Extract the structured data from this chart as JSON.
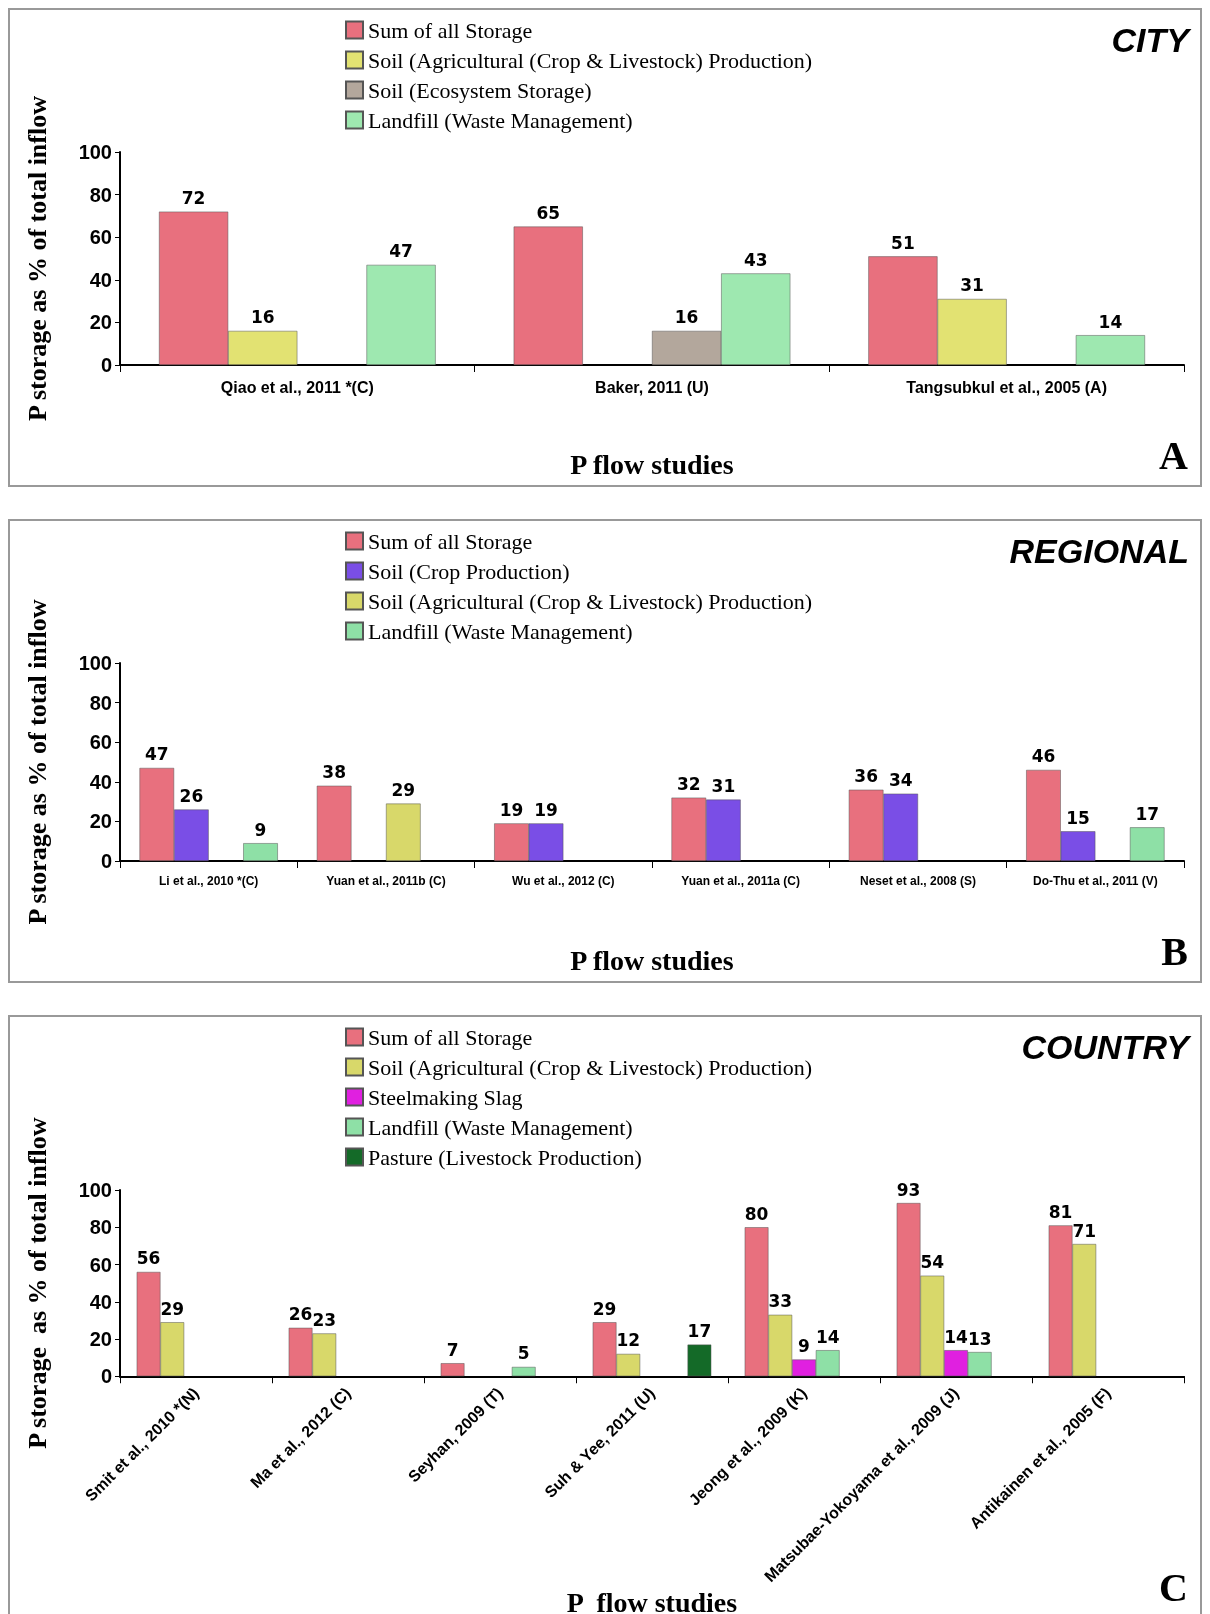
{
  "chart_data": [
    {
      "type": "bar",
      "title": "CITY",
      "xlabel": "P flow studies",
      "ylabel": "P storage as % of total inflow",
      "annotations": [
        "A"
      ],
      "categories": [
        "Qiao et al., 2011 *(C)",
        "Baker, 2011 (U)",
        "Tangsubkul et al., 2005 (A)"
      ],
      "series": [
        {
          "name": "Sum of all Storage",
          "color": "#e8707e",
          "values": [
            72,
            65,
            51
          ]
        },
        {
          "name": "Soil (Agricultural (Crop & Livestock) Production)",
          "color": "#e2e272",
          "values": [
            16,
            null,
            31
          ]
        },
        {
          "name": "Soil (Ecosystem Storage)",
          "color": "#b3a79c",
          "values": [
            null,
            16,
            null
          ]
        },
        {
          "name": "Landfill (Waste Management)",
          "color": "#9ee8b0",
          "values": [
            47,
            43,
            14
          ]
        }
      ],
      "ylim": [
        0,
        100
      ],
      "yticks": [
        0,
        20,
        40,
        60,
        80,
        100
      ],
      "data_labels": true,
      "legend": "top"
    },
    {
      "type": "bar",
      "title": "REGIONAL",
      "xlabel": "P flow studies",
      "ylabel": "P storage as % of total inflow",
      "annotations": [
        "B"
      ],
      "categories": [
        "Li et al., 2010 *(C)",
        "Yuan et al., 2011b (C)",
        "Wu et al., 2012 (C)",
        "Yuan et al., 2011a (C)",
        "Neset et al., 2008 (S)",
        "Do-Thu et al., 2011 (V)"
      ],
      "series": [
        {
          "name": "Sum of all Storage",
          "color": "#e8707e",
          "values": [
            47,
            38,
            19,
            32,
            36,
            46
          ]
        },
        {
          "name": "Soil (Crop Production)",
          "color": "#7a4ee6",
          "values": [
            26,
            null,
            19,
            31,
            34,
            15
          ]
        },
        {
          "name": "Soil (Agricultural (Crop & Livestock) Production)",
          "color": "#d8d86a",
          "values": [
            null,
            29,
            null,
            null,
            null,
            null
          ]
        },
        {
          "name": "Landfill (Waste Management)",
          "color": "#8ee0a6",
          "values": [
            9,
            null,
            null,
            null,
            null,
            17
          ]
        }
      ],
      "ylim": [
        0,
        100
      ],
      "yticks": [
        0,
        20,
        40,
        60,
        80,
        100
      ],
      "data_labels": true,
      "legend": "top"
    },
    {
      "type": "bar",
      "title": "COUNTRY",
      "xlabel": "P  flow studies",
      "ylabel": "P storage  as % of total inflow",
      "annotations": [
        "C"
      ],
      "categories": [
        "Smit et al., 2010 *(N)",
        "Ma et al., 2012 (C)",
        "Seyhan, 2009 (T)",
        "Suh & Yee, 2011 (U)",
        "Jeong et al., 2009 (K)",
        "Matsubae-Yokoyama et al., 2009 (J)",
        "Antikainen et al., 2005 (F)"
      ],
      "series": [
        {
          "name": "Sum of all Storage",
          "color": "#e8707e",
          "values": [
            56,
            26,
            7,
            29,
            80,
            93,
            81
          ]
        },
        {
          "name": "Soil (Agricultural (Crop & Livestock) Production)",
          "color": "#d8d86a",
          "values": [
            29,
            23,
            null,
            12,
            33,
            54,
            71
          ]
        },
        {
          "name": "Steelmaking Slag",
          "color": "#e020e0",
          "values": [
            null,
            null,
            null,
            null,
            9,
            14,
            null
          ]
        },
        {
          "name": "Landfill (Waste Management)",
          "color": "#8ee0a6",
          "values": [
            null,
            null,
            5,
            null,
            14,
            13,
            null
          ]
        },
        {
          "name": "Pasture (Livestock Production)",
          "color": "#146a28",
          "values": [
            null,
            null,
            null,
            17,
            null,
            null,
            null
          ]
        }
      ],
      "ylim": [
        0,
        100
      ],
      "yticks": [
        0,
        20,
        40,
        60,
        80,
        100
      ],
      "data_labels": true,
      "legend": "top"
    }
  ]
}
